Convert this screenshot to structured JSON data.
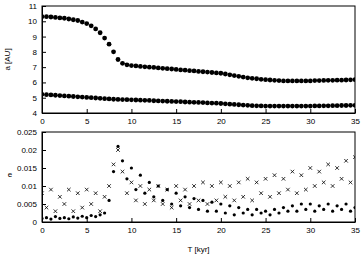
{
  "chart_data": [
    {
      "type": "scatter",
      "ylabel": "a [AU]",
      "x": [
        0,
        0.5,
        1,
        1.5,
        2,
        2.5,
        3,
        3.5,
        4,
        4.5,
        5,
        5.5,
        6,
        6.5,
        7,
        7.5,
        8,
        8.5,
        9,
        9.5,
        10,
        10.5,
        11,
        11.5,
        12,
        12.5,
        13,
        13.5,
        14,
        14.5,
        15,
        15.5,
        16,
        16.5,
        17,
        17.5,
        18,
        18.5,
        19,
        19.5,
        20,
        20.5,
        21,
        21.5,
        22,
        22.5,
        23,
        23.5,
        24,
        24.5,
        25,
        25.5,
        26,
        26.5,
        27,
        27.5,
        28,
        28.5,
        29,
        29.5,
        30,
        30.5,
        31,
        31.5,
        32,
        32.5,
        33,
        33.5,
        34,
        34.5,
        35
      ],
      "xlim": [
        0,
        35
      ],
      "xticks": [
        0,
        5,
        10,
        15,
        20,
        25,
        30,
        35
      ],
      "ylim": [
        4,
        11
      ],
      "yticks": [
        4,
        5,
        6,
        7,
        8,
        9,
        10,
        11
      ],
      "series": [
        {
          "color": "#000000",
          "marker": "circle",
          "values": [
            10.3,
            10.3,
            10.28,
            10.25,
            10.22,
            10.2,
            10.15,
            10.1,
            10.05,
            9.95,
            9.85,
            9.7,
            9.5,
            9.25,
            8.9,
            8.5,
            8.0,
            7.5,
            7.25,
            7.15,
            7.1,
            7.08,
            7.05,
            7.02,
            7.0,
            6.98,
            6.95,
            6.92,
            6.9,
            6.88,
            6.85,
            6.82,
            6.8,
            6.77,
            6.75,
            6.72,
            6.7,
            6.68,
            6.65,
            6.62,
            6.6,
            6.55,
            6.5,
            6.45,
            6.4,
            6.35,
            6.3,
            6.27,
            6.24,
            6.2,
            6.18,
            6.16,
            6.14,
            6.12,
            6.1,
            6.1,
            6.1,
            6.1,
            6.1,
            6.1,
            6.1,
            6.12,
            6.12,
            6.13,
            6.14,
            6.14,
            6.15,
            6.15,
            6.16,
            6.17,
            6.18
          ]
        },
        {
          "color": "#000000",
          "marker": "circle",
          "values": [
            5.22,
            5.2,
            5.18,
            5.16,
            5.14,
            5.12,
            5.1,
            5.08,
            5.06,
            5.04,
            5.02,
            5.0,
            4.98,
            4.96,
            4.94,
            4.92,
            4.9,
            4.89,
            4.88,
            4.87,
            4.86,
            4.85,
            4.84,
            4.83,
            4.82,
            4.8,
            4.79,
            4.78,
            4.77,
            4.76,
            4.75,
            4.74,
            4.72,
            4.71,
            4.7,
            4.69,
            4.68,
            4.66,
            4.65,
            4.64,
            4.62,
            4.6,
            4.58,
            4.56,
            4.54,
            4.52,
            4.5,
            4.48,
            4.47,
            4.46,
            4.45,
            4.45,
            4.45,
            4.45,
            4.45,
            4.45,
            4.45,
            4.45,
            4.45,
            4.45,
            4.45,
            4.46,
            4.46,
            4.47,
            4.47,
            4.48,
            4.48,
            4.49,
            4.49,
            4.5,
            4.5
          ]
        }
      ]
    },
    {
      "type": "scatter",
      "ylabel": "e",
      "xlabel": "T [kyr]",
      "x": [
        0,
        0.5,
        1,
        1.5,
        2,
        2.5,
        3,
        3.5,
        4,
        4.5,
        5,
        5.5,
        6,
        6.5,
        7,
        7.5,
        8,
        8.5,
        9,
        9.5,
        10,
        10.5,
        11,
        11.5,
        12,
        12.5,
        13,
        13.5,
        14,
        14.5,
        15,
        15.5,
        16,
        16.5,
        17,
        17.5,
        18,
        18.5,
        19,
        19.5,
        20,
        20.5,
        21,
        21.5,
        22,
        22.5,
        23,
        23.5,
        24,
        24.5,
        25,
        25.5,
        26,
        26.5,
        27,
        27.5,
        28,
        28.5,
        29,
        29.5,
        30,
        30.5,
        31,
        31.5,
        32,
        32.5,
        33,
        33.5,
        34,
        34.5,
        35
      ],
      "xlim": [
        0,
        35
      ],
      "xticks": [
        0,
        5,
        10,
        15,
        20,
        25,
        30,
        35
      ],
      "ylim": [
        0,
        0.025
      ],
      "yticks": [
        0,
        0.005,
        0.01,
        0.015,
        0.02,
        0.025
      ],
      "series": [
        {
          "color": "#000000",
          "marker": "cross",
          "values": [
            0.008,
            0.004,
            0.009,
            0.003,
            0.007,
            0.005,
            0.009,
            0.003,
            0.008,
            0.004,
            0.009,
            0.005,
            0.008,
            0.003,
            0.007,
            0.01,
            0.016,
            0.02,
            0.014,
            0.008,
            0.011,
            0.006,
            0.01,
            0.005,
            0.009,
            0.006,
            0.01,
            0.005,
            0.009,
            0.004,
            0.01,
            0.006,
            0.009,
            0.005,
            0.01,
            0.006,
            0.011,
            0.005,
            0.01,
            0.006,
            0.011,
            0.007,
            0.01,
            0.006,
            0.011,
            0.007,
            0.012,
            0.006,
            0.011,
            0.008,
            0.012,
            0.007,
            0.013,
            0.008,
            0.012,
            0.009,
            0.014,
            0.008,
            0.013,
            0.009,
            0.015,
            0.01,
            0.014,
            0.011,
            0.016,
            0.01,
            0.015,
            0.012,
            0.017,
            0.011,
            0.018
          ]
        },
        {
          "color": "#000000",
          "marker": "circle",
          "values": [
            0.001,
            0.0012,
            0.0008,
            0.0015,
            0.001,
            0.0012,
            0.0009,
            0.0014,
            0.0011,
            0.0016,
            0.0012,
            0.0018,
            0.0015,
            0.002,
            0.0025,
            0.006,
            0.014,
            0.021,
            0.017,
            0.012,
            0.015,
            0.009,
            0.013,
            0.008,
            0.011,
            0.007,
            0.01,
            0.006,
            0.009,
            0.005,
            0.008,
            0.0045,
            0.007,
            0.004,
            0.0065,
            0.0035,
            0.006,
            0.003,
            0.0055,
            0.003,
            0.005,
            0.0025,
            0.0045,
            0.002,
            0.004,
            0.0025,
            0.0035,
            0.002,
            0.0035,
            0.0025,
            0.003,
            0.002,
            0.0035,
            0.0025,
            0.004,
            0.003,
            0.0045,
            0.003,
            0.005,
            0.0035,
            0.005,
            0.003,
            0.0045,
            0.0035,
            0.005,
            0.003,
            0.0045,
            0.0035,
            0.005,
            0.003,
            0.004
          ]
        }
      ]
    }
  ]
}
